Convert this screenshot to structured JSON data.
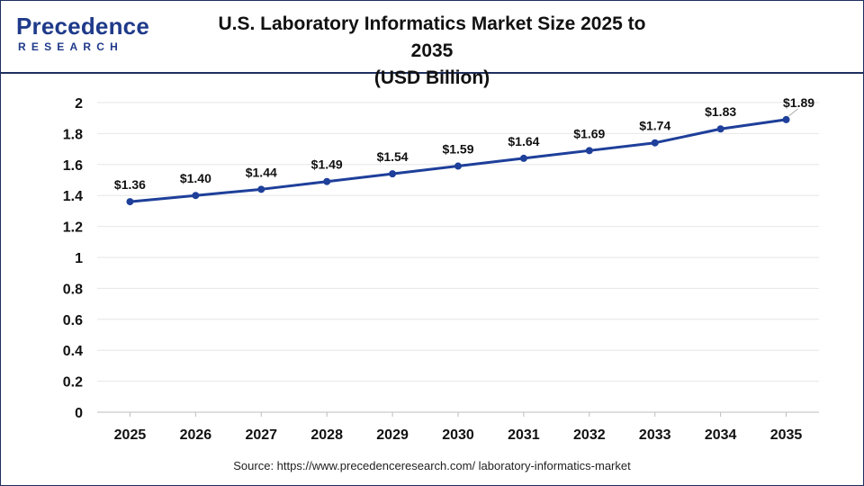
{
  "brand": {
    "logo_main": "Precedence",
    "logo_sub": "RESEARCH"
  },
  "colors": {
    "brand": "#1f3a8a",
    "line": "#1e3f9a",
    "grid": "#e6e6e6"
  },
  "source": "Source: https://www.precedenceresearch.com/ laboratory-informatics-market",
  "chart_data": {
    "type": "line",
    "title_line1": "U.S. Laboratory Informatics Market Size 2025 to 2035",
    "title_line2": "(USD Billion)",
    "xlabel": "",
    "ylabel": "",
    "categories": [
      "2025",
      "2026",
      "2027",
      "2028",
      "2029",
      "2030",
      "2031",
      "2032",
      "2033",
      "2034",
      "2035"
    ],
    "values": [
      1.36,
      1.4,
      1.44,
      1.49,
      1.54,
      1.59,
      1.64,
      1.69,
      1.74,
      1.83,
      1.89
    ],
    "data_labels": [
      "$1.36",
      "$1.40",
      "$1.44",
      "$1.49",
      "$1.54",
      "$1.59",
      "$1.64",
      "$1.69",
      "$1.74",
      "$1.83",
      "$1.89"
    ],
    "yticks": [
      "0",
      "0.2",
      "0.4",
      "0.6",
      "0.8",
      "1",
      "1.2",
      "1.4",
      "1.6",
      "1.8",
      "2"
    ],
    "ylim": [
      0,
      2
    ],
    "grid": true,
    "legend": "none"
  }
}
